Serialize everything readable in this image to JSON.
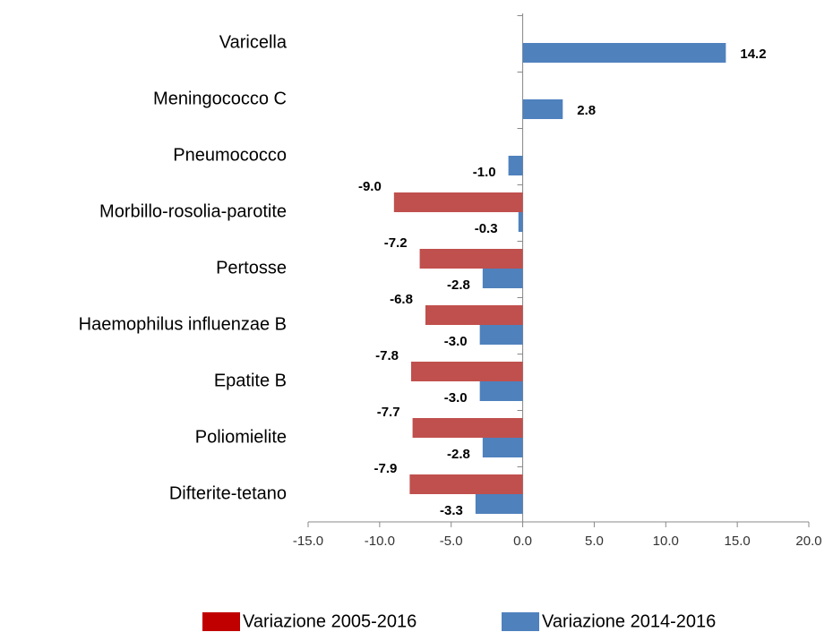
{
  "chart_data": {
    "type": "hbar",
    "categories": [
      "Varicella",
      "Meningococco C",
      "Pneumococco",
      "Morbillo-rosolia-parotite",
      "Pertosse",
      "Haemophilus influenzae B",
      "Epatite B",
      "Poliomielite",
      "Difterite-tetano"
    ],
    "series": [
      {
        "name": "Variazione 2005-2016",
        "color": "#c0504d",
        "legend_color": "#c00000",
        "values": [
          null,
          null,
          null,
          -9,
          -7.2,
          -6.8,
          -7.8,
          -7.7,
          -7.9
        ],
        "value_labels": [
          null,
          null,
          null,
          "-9.0",
          "-7.2",
          "-6.8",
          "-7.8",
          "-7.7",
          "-7.9"
        ]
      },
      {
        "name": "Variazione 2014-2016",
        "color": "#4f81bd",
        "legend_color": "#4f81bd",
        "values": [
          14.2,
          2.8,
          -1,
          -0.3,
          -2.8,
          -3,
          -3,
          -2.8,
          -3.3
        ],
        "value_labels": [
          "14.2",
          "2.8",
          "-1.0",
          "-0.3",
          "-2.8",
          "-3.0",
          "-3.0",
          "-2.8",
          "-3.3"
        ]
      }
    ],
    "xlim": [
      -15,
      20
    ],
    "xticks": [
      {
        "value": -15,
        "label": "-15.0"
      },
      {
        "value": -10,
        "label": "-10.0"
      },
      {
        "value": -5,
        "label": "-5.0"
      },
      {
        "value": 0,
        "label": "0.0"
      },
      {
        "value": 5,
        "label": "5.0"
      },
      {
        "value": 10,
        "label": "10.0"
      },
      {
        "value": 15,
        "label": "15.0"
      },
      {
        "value": 20,
        "label": "20.0"
      }
    ],
    "legend": "bottom",
    "grid": false
  }
}
